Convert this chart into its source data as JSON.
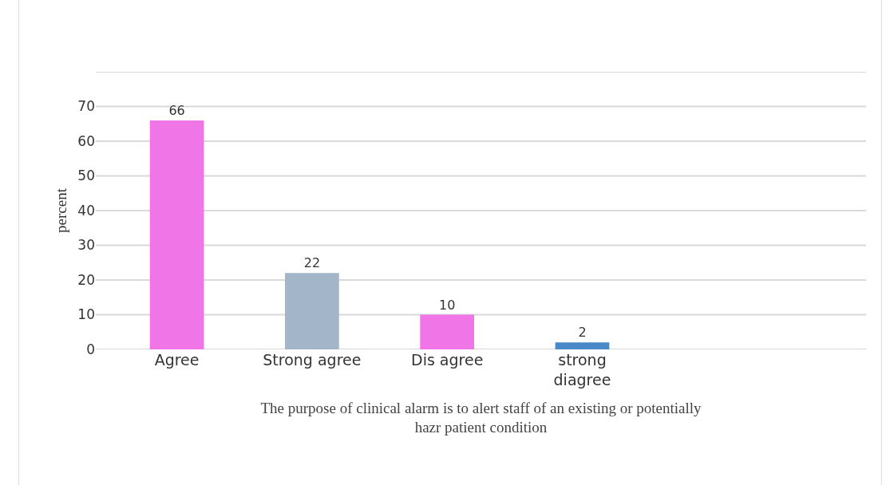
{
  "chart_data": {
    "type": "bar",
    "categories": [
      "Agree",
      "Strong agree",
      "Dis agree",
      "strong diagree"
    ],
    "values": [
      66,
      22,
      10,
      2
    ],
    "colors": [
      "#f075e6",
      "#a2b5c9",
      "#f075e6",
      "#4a89c8"
    ],
    "data_labels": true,
    "ylim": [
      0,
      80
    ],
    "yticks": [
      0,
      10,
      20,
      30,
      40,
      50,
      60,
      70,
      {
        "value": 80,
        "label": null
      }
    ],
    "grid": "y",
    "ylabel": "percent",
    "xlabel": "The purpose of clinical alarm is to alert staff of an existing or potentially hazr patient condition",
    "legend": false
  }
}
